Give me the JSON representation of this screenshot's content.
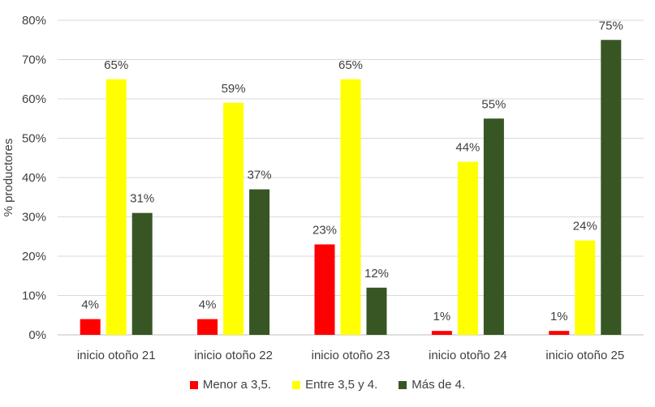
{
  "chart_data": {
    "type": "bar",
    "title": "",
    "xlabel": "",
    "ylabel": "% productores",
    "ylim": [
      0,
      80
    ],
    "y_ticks": [
      "0%",
      "10%",
      "20%",
      "30%",
      "40%",
      "50%",
      "60%",
      "70%",
      "80%"
    ],
    "grid": "horizontal",
    "legend_position": "bottom",
    "categories": [
      "inicio otoño 21",
      "inicio otoño 22",
      "inicio otoño 23",
      "inicio otoño 24",
      "inicio otoño 25"
    ],
    "series": [
      {
        "name": "Menor a 3,5.",
        "color": "#ff0000",
        "values": [
          4,
          4,
          23,
          1,
          1
        ],
        "labels": [
          "4%",
          "4%",
          "23%",
          "1%",
          "1%"
        ]
      },
      {
        "name": "Entre 3,5 y 4.",
        "color": "#ffff00",
        "values": [
          65,
          59,
          65,
          44,
          24
        ],
        "labels": [
          "65%",
          "59%",
          "65%",
          "44%",
          "24%"
        ]
      },
      {
        "name": "Más de 4.",
        "color": "#375623",
        "values": [
          31,
          37,
          12,
          55,
          75
        ],
        "labels": [
          "31%",
          "37%",
          "12%",
          "55%",
          "75%"
        ]
      }
    ]
  }
}
